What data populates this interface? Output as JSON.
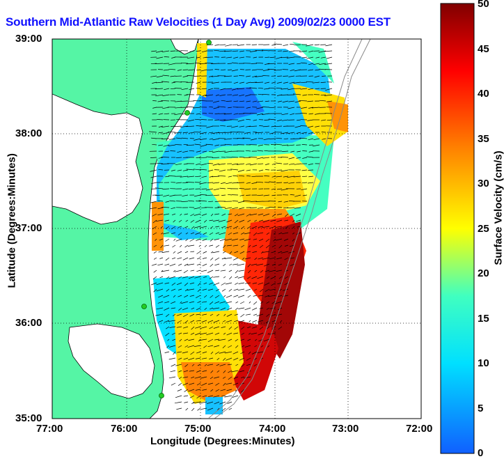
{
  "title": "Southern Mid-Atlantic Raw Velocities (1 Day Avg) 2009/02/23 0000 EST",
  "axes": {
    "xlabel": "Longitude (Degrees:Minutes)",
    "ylabel": "Latitude (Degrees:Minutes)",
    "x_ticks": [
      "77:00",
      "76:00",
      "75:00",
      "74:00",
      "73:00",
      "72:00"
    ],
    "y_ticks": [
      "39:00",
      "38:00",
      "37:00",
      "36:00",
      "35:00"
    ],
    "grid": "dotted"
  },
  "colorbar": {
    "title": "Surface Velocity (cm/s)",
    "ticks": [
      "0",
      "5",
      "10",
      "15",
      "20",
      "25",
      "30",
      "35",
      "40",
      "45",
      "50"
    ],
    "range": [
      0,
      50
    ],
    "colormap": [
      "#1060ff",
      "#00e0ff",
      "#40ffc0",
      "#ffff00",
      "#ff8000",
      "#ff0000",
      "#800000"
    ]
  },
  "colors": {
    "land": "#55f5a5",
    "coast_lines": "#000000",
    "title_color": "#1010ff",
    "station_marker": "#22cc22"
  }
}
